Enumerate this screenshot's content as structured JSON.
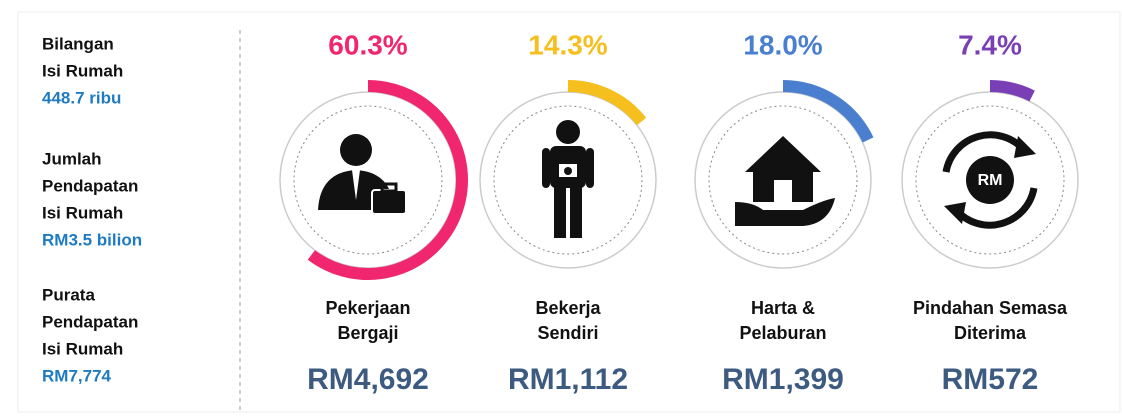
{
  "chart_data": {
    "type": "gauge",
    "summary": [
      {
        "label": [
          "Bilangan",
          "Isi Rumah"
        ],
        "value": "448.7 ribu"
      },
      {
        "label": [
          "Jumlah",
          "Pendapatan",
          "Isi Rumah"
        ],
        "value": "RM3.5 bilion"
      },
      {
        "label": [
          "Purata",
          "Pendapatan",
          "Isi Rumah"
        ],
        "value": "RM7,774"
      }
    ],
    "categories": [
      [
        "Pekerjaan",
        "Bergaji"
      ],
      [
        "Bekerja",
        "Sendiri"
      ],
      [
        "Harta &",
        "Pelaburan"
      ],
      [
        "Pindahan Semasa",
        "Diterima"
      ]
    ],
    "values": [
      60.3,
      14.3,
      18.0,
      7.4
    ],
    "value_labels": [
      "60.3%",
      "14.3%",
      "18.0%",
      "7.4%"
    ],
    "colors": [
      "#f0266f",
      "#f5bf1d",
      "#4a7fd0",
      "#7b3fb5"
    ],
    "amounts": [
      "RM4,692",
      "RM1,112",
      "RM1,399",
      "RM572"
    ],
    "scale_max": 100
  }
}
